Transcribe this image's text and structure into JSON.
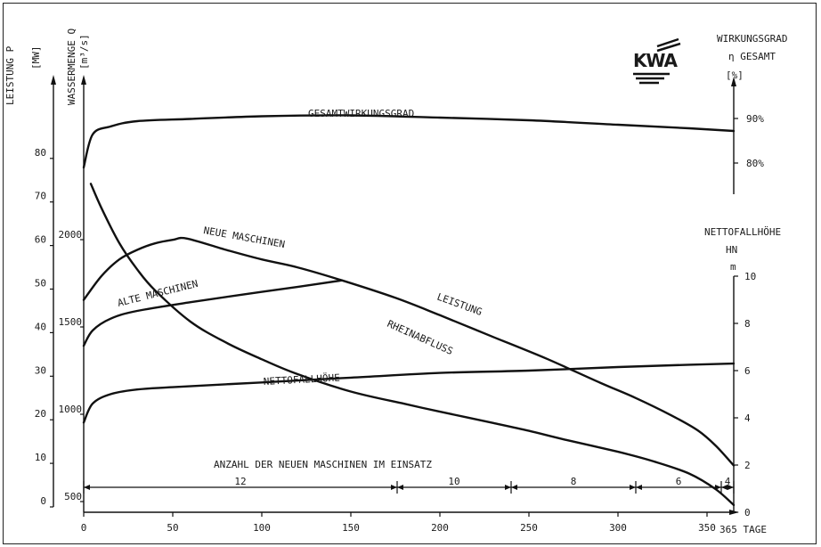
{
  "chart_data": {
    "type": "line",
    "left_axis_p": {
      "label": "LEISTUNG P",
      "unit": "[MW]",
      "ticks": [
        "0",
        "10",
        "20",
        "30",
        "40",
        "50",
        "60",
        "70",
        "80"
      ]
    },
    "left_axis_q": {
      "label": "WASSERMENGE Q",
      "unit": "[m³/s]",
      "ticks": [
        "500",
        "1000",
        "1500",
        "2000"
      ]
    },
    "right_axis_eta": {
      "label_1": "WIRKUNGSGRAD",
      "label_2": "η GESAMT",
      "unit": "[%]",
      "ticks": [
        "80%",
        "90%"
      ]
    },
    "right_axis_h": {
      "label_1": "NETTOFALLHÖHE",
      "label_2": "HN",
      "unit": "m",
      "ticks": [
        "0",
        "2",
        "4",
        "6",
        "8",
        "10"
      ]
    },
    "x_axis": {
      "ticks": [
        "0",
        "50",
        "100",
        "150",
        "200",
        "250",
        "300",
        "350"
      ],
      "end_label": "365 TAGE",
      "range": [
        0,
        365
      ]
    },
    "logo": "KWA",
    "machines_title": "ANZAHL DER NEUEN MASCHINEN IM EINSATZ",
    "machine_segments": [
      {
        "label": "12",
        "from": 0,
        "to": 176
      },
      {
        "label": "10",
        "from": 176,
        "to": 240
      },
      {
        "label": "8",
        "from": 240,
        "to": 310
      },
      {
        "label": "6",
        "from": 310,
        "to": 358
      },
      {
        "label": "4",
        "from": 358,
        "to": 365
      }
    ],
    "series": [
      {
        "name": "GESAMTWIRKUNGSGRAD",
        "axis": "eta_percent",
        "x": [
          0,
          5,
          15,
          30,
          60,
          100,
          150,
          200,
          250,
          300,
          340,
          365
        ],
        "y": [
          79,
          86.4,
          88.2,
          89.4,
          89.9,
          90.5,
          90.7,
          90.2,
          89.6,
          88.6,
          87.8,
          87.2
        ]
      },
      {
        "name": "RHEINABFLUSS",
        "axis": "q_m3s",
        "x": [
          4,
          10,
          20,
          30,
          40,
          60,
          80,
          100,
          120,
          150,
          180,
          200,
          230,
          250,
          270,
          300,
          320,
          340,
          355,
          365
        ],
        "y": [
          2320,
          2180,
          1980,
          1830,
          1710,
          1530,
          1410,
          1315,
          1230,
          1130,
          1060,
          1015,
          950,
          905,
          855,
          785,
          730,
          660,
          570,
          480
        ]
      },
      {
        "name": "LEISTUNG",
        "axis": "p_mw",
        "x": [
          0,
          10,
          20,
          30,
          40,
          50,
          58,
          80,
          100,
          120,
          145,
          175,
          200,
          230,
          260,
          290,
          310,
          330,
          345,
          355,
          365
        ],
        "y": [
          47.5,
          53,
          56.8,
          59,
          60.5,
          61.3,
          61.6,
          59,
          56.8,
          55,
          52,
          48,
          44,
          39,
          34,
          28.5,
          25,
          21,
          17.5,
          14,
          9.5
        ]
      },
      {
        "name": "ALTE MASCHINEN",
        "axis": "p_mw",
        "x": [
          0,
          5,
          15,
          30,
          60,
          90,
          120,
          145
        ],
        "y": [
          37,
          40.5,
          43.2,
          45,
          47,
          48.8,
          50.5,
          52
        ]
      },
      {
        "name": "NETTOFALLHÖHE",
        "axis": "h_m",
        "x": [
          0,
          5,
          15,
          30,
          50,
          100,
          150,
          200,
          250,
          300,
          340,
          365
        ],
        "y": [
          3.8,
          4.6,
          5.0,
          5.2,
          5.3,
          5.5,
          5.7,
          5.9,
          6.0,
          6.15,
          6.25,
          6.3
        ]
      }
    ],
    "annotations": [
      {
        "text": "GESAMTWIRKUNGSGRAD"
      },
      {
        "text": "NEUE MASCHINEN"
      },
      {
        "text": "ALTE MASCHINEN"
      },
      {
        "text": "LEISTUNG"
      },
      {
        "text": "RHEINABFLUSS"
      },
      {
        "text": "NETTOFALLHÖHE"
      }
    ]
  }
}
